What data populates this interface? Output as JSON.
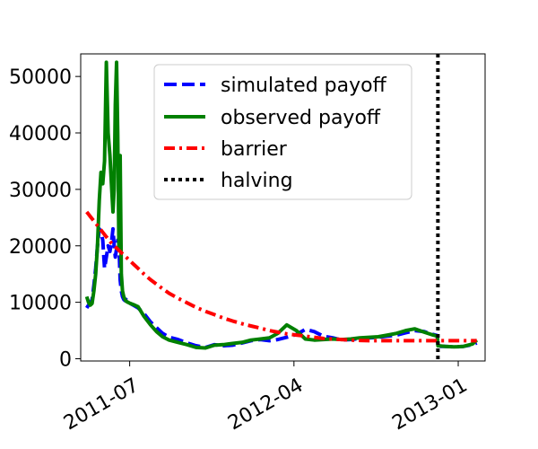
{
  "chart_data": {
    "type": "line",
    "title": "",
    "xlabel": "",
    "ylabel": "",
    "x_dates": [
      "2011-04-20",
      "2011-04-23",
      "2011-04-26",
      "2011-04-29",
      "2011-05-02",
      "2011-05-05",
      "2011-05-08",
      "2011-05-11",
      "2011-05-14",
      "2011-05-17",
      "2011-05-20",
      "2011-05-23",
      "2011-05-26",
      "2011-05-29",
      "2011-06-01",
      "2011-06-03",
      "2011-06-05",
      "2011-06-07",
      "2011-06-09",
      "2011-06-11",
      "2011-06-13",
      "2011-06-15",
      "2011-06-17",
      "2011-06-19",
      "2011-06-21",
      "2011-06-23",
      "2011-06-25",
      "2011-06-28",
      "2011-07-02",
      "2011-07-07",
      "2011-07-15",
      "2011-07-25",
      "2011-08-05",
      "2011-08-15",
      "2011-08-25",
      "2011-09-05",
      "2011-09-20",
      "2011-10-05",
      "2011-10-20",
      "2011-11-05",
      "2011-11-20",
      "2011-12-05",
      "2011-12-20",
      "2012-01-05",
      "2012-01-20",
      "2012-02-05",
      "2012-02-20",
      "2012-03-05",
      "2012-03-20",
      "2012-04-05",
      "2012-04-20",
      "2012-05-05",
      "2012-05-20",
      "2012-06-05",
      "2012-06-20",
      "2012-07-05",
      "2012-07-20",
      "2012-08-05",
      "2012-08-20",
      "2012-09-05",
      "2012-09-20",
      "2012-10-05",
      "2012-10-20",
      "2012-11-05",
      "2012-11-20",
      "2012-11-27",
      "2012-11-28",
      "2012-12-10",
      "2012-12-25",
      "2013-01-10",
      "2013-01-25",
      "2013-02-01"
    ],
    "series": [
      {
        "name": "simulated payoff",
        "color": "#0000ff",
        "style": "dashed",
        "values": [
          9000,
          9500,
          9800,
          10500,
          13000,
          16000,
          20000,
          23000,
          22500,
          21000,
          16000,
          18000,
          20000,
          19000,
          21000,
          23000,
          20000,
          18000,
          19500,
          21000,
          20500,
          14000,
          12000,
          11000,
          10500,
          10300,
          10500,
          10000,
          9800,
          9500,
          9000,
          8000,
          6500,
          5500,
          4500,
          3800,
          3400,
          2800,
          2300,
          2000,
          2500,
          2300,
          2400,
          2800,
          3200,
          3400,
          3200,
          3400,
          3800,
          4300,
          5200,
          4800,
          4000,
          3700,
          3300,
          3400,
          3600,
          3700,
          3800,
          4000,
          4200,
          4600,
          5000,
          4800,
          4300,
          4100,
          2200,
          2200,
          2100,
          2200,
          2500,
          2800
        ]
      },
      {
        "name": "observed payoff",
        "color": "#008000",
        "style": "solid",
        "values": [
          11000,
          10000,
          9500,
          9800,
          12000,
          15000,
          20000,
          28000,
          33000,
          31000,
          35000,
          52500,
          40000,
          36000,
          30000,
          26000,
          30000,
          45000,
          52500,
          40000,
          20000,
          36000,
          15000,
          12000,
          11000,
          10500,
          10200,
          10000,
          9800,
          9600,
          9200,
          7500,
          6000,
          4800,
          3900,
          3300,
          2900,
          2500,
          2000,
          1900,
          2400,
          2500,
          2700,
          2900,
          3300,
          3500,
          3700,
          4500,
          6000,
          5000,
          3500,
          3300,
          3400,
          3500,
          3400,
          3500,
          3700,
          3800,
          3900,
          4200,
          4500,
          5000,
          5300,
          4700,
          4200,
          4000,
          2300,
          2200,
          2100,
          2200,
          2600,
          3300
        ]
      },
      {
        "name": "barrier",
        "color": "#ff0000",
        "style": "dashdot",
        "values": [
          26000,
          25600,
          25200,
          24800,
          24400,
          24000,
          23600,
          23200,
          22800,
          22400,
          22000,
          21600,
          21200,
          20800,
          20400,
          20200,
          20000,
          19800,
          19600,
          19400,
          19200,
          19000,
          18800,
          18600,
          18400,
          18200,
          18000,
          17700,
          17300,
          16800,
          16000,
          15000,
          14000,
          13200,
          12400,
          11600,
          10700,
          9900,
          9100,
          8400,
          7800,
          7200,
          6700,
          6200,
          5800,
          5400,
          5000,
          4700,
          4400,
          4200,
          4000,
          3800,
          3600,
          3500,
          3400,
          3300,
          3250,
          3200,
          3200,
          3200,
          3200,
          3200,
          3200,
          3200,
          3200,
          3200,
          3200,
          3200,
          3200,
          3200,
          3200,
          3200
        ]
      },
      {
        "name": "halving",
        "color": "#000000",
        "style": "dotted",
        "vertical_line_at": "2012-11-28"
      }
    ],
    "x_tick_labels": [
      "2011-07",
      "2012-04",
      "2013-01"
    ],
    "x_tick_dates": [
      "2011-07-01",
      "2012-04-01",
      "2013-01-01"
    ],
    "y_tick_labels": [
      "0",
      "10000",
      "20000",
      "30000",
      "40000",
      "50000"
    ],
    "y_tick_values": [
      0,
      10000,
      20000,
      30000,
      40000,
      50000
    ],
    "xlim": [
      "2011-04-10",
      "2013-02-15"
    ],
    "ylim": [
      -400,
      54000
    ],
    "legend_position": "top-center",
    "grid": false
  }
}
